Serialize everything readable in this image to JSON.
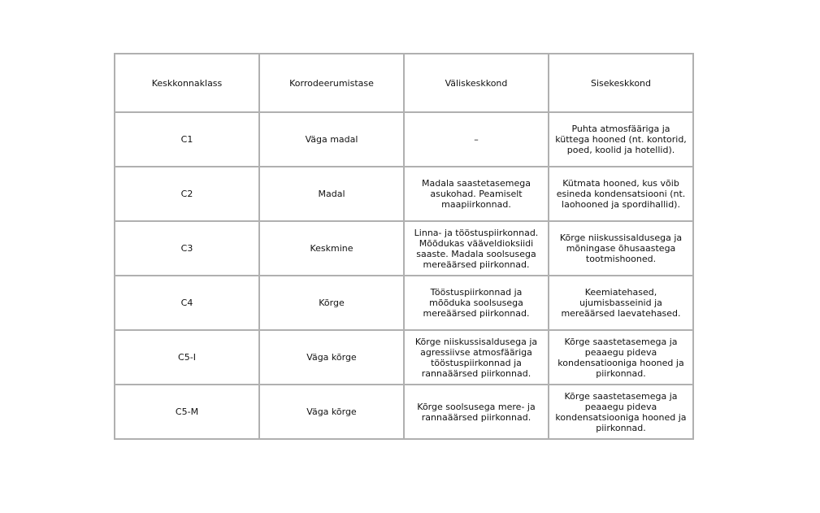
{
  "headers": [
    "Keskkonnaklass",
    "Korrodeerumistase",
    "Väliskeskkond",
    "Sisekeskkond"
  ],
  "rows": [
    [
      "C1",
      "Väga madal",
      "–",
      "Puhta atmosfääriga ja küttega hooned (nt. kontorid, poed, koolid ja hotellid)."
    ],
    [
      "C2",
      "Madal",
      "Madala saastetasemega asukohad. Peamiselt maapiirkonnad.",
      "Kütmata hooned, kus võib esineda kondensatsiooni (nt. laohooned ja spordihallid)."
    ],
    [
      "C3",
      "Keskmine",
      "Linna- ja tööstuspiirkonnad. Mõõdukas vääveldioksiidi saaste. Madala soolsusega mereäärsed piirkonnad.",
      "Kõrge niiskussisaldusega ja mõningase õhusaastega tootmishooned."
    ],
    [
      "C4",
      "Kõrge",
      "Tööstuspiirkonnad ja mõõduka soolsusega mereäärsed piirkonnad.",
      "Keemiatehased, ujumisbasseinid ja mereäärsed laevatehased."
    ],
    [
      "C5-I",
      "Väga kõrge",
      "Kõrge niiskussisaldusega ja agressiivse atmosfääriga tööstuspiirkonnad ja rannaäärsed piirkonnad.",
      "Kõrge saastetasemega ja peaaegu pideva kondensatiooniga hooned ja piirkonnad."
    ],
    [
      "C5-M",
      "Väga kõrge",
      "Kõrge soolsusega mere- ja rannaäärsed piirkonnad.",
      "Kõrge saastetasemega ja peaaegu pideva kondensatsiooniga hooned ja piirkonnad."
    ]
  ]
}
